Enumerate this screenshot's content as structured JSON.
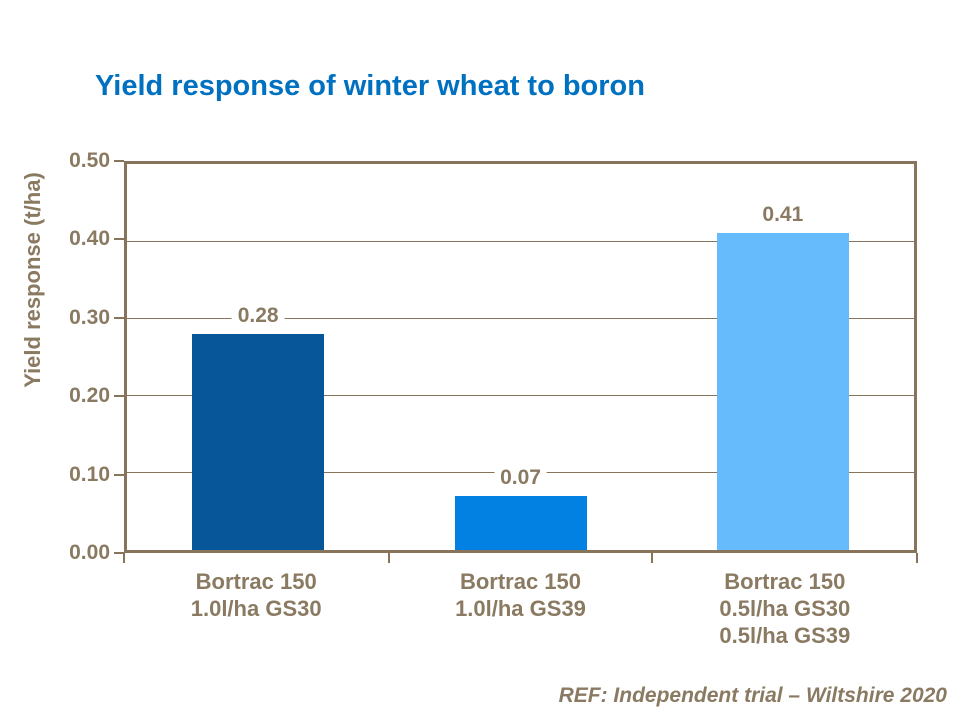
{
  "title": "Yield response of winter wheat to boron",
  "footer": "REF: Independent trial – Wiltshire 2020",
  "colors": {
    "title_blue": "#0070C0",
    "line_brown": "#87745A",
    "text_brown": "#8A7A62",
    "background": "#FFFFFF"
  },
  "chart_data": {
    "type": "bar",
    "title": "Yield response of winter wheat to boron",
    "xlabel": "",
    "ylabel": "Yield response (t/ha)",
    "ylim": [
      0,
      0.5
    ],
    "yticks": [
      0.0,
      0.1,
      0.2,
      0.3,
      0.4,
      0.5
    ],
    "ytick_labels": [
      "0.00",
      "0.10",
      "0.20",
      "0.30",
      "0.40",
      "0.50"
    ],
    "grid": true,
    "legend": false,
    "categories": [
      "Bortrac 150\n1.0l/ha GS30",
      "Bortrac 150\n1.0l/ha GS39",
      "Bortrac 150\n0.5l/ha GS30\n0.5l/ha GS39"
    ],
    "values": [
      0.28,
      0.07,
      0.41
    ],
    "value_labels": [
      "0.28",
      "0.07",
      "0.41"
    ],
    "bar_colors": [
      "#065699",
      "#0381E2",
      "#66BBFC"
    ],
    "source_note": "REF: Independent trial – Wiltshire 2020"
  }
}
